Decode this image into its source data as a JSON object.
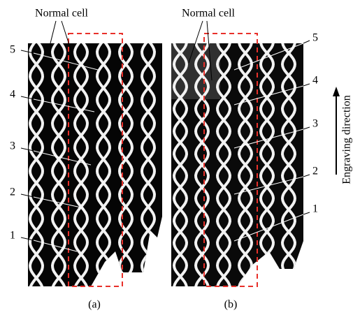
{
  "panels": [
    {
      "annotation": "Normal cell",
      "labels": [
        "5",
        "4",
        "3",
        "2",
        "1"
      ],
      "caption": "(a)"
    },
    {
      "annotation": "Normal cell",
      "labels": [
        "5",
        "4",
        "3",
        "2",
        "1"
      ],
      "caption": "(b)"
    }
  ],
  "side_label": "Engraving direction"
}
